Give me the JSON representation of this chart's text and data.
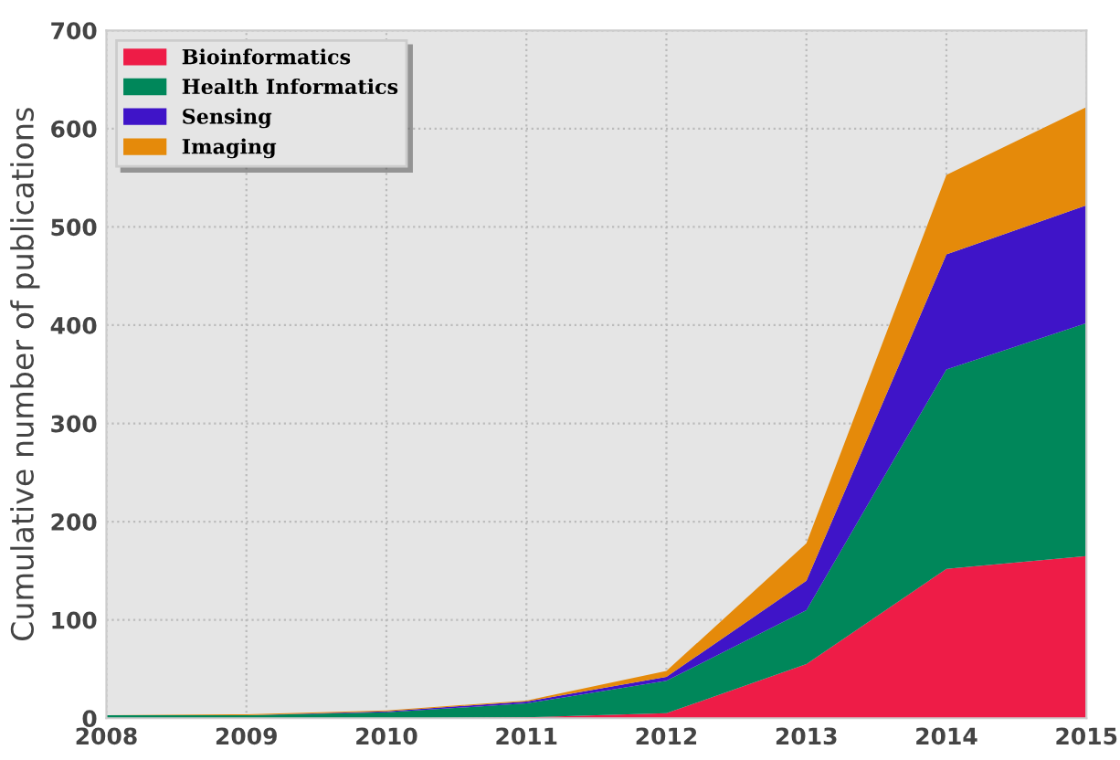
{
  "chart_data": {
    "type": "area",
    "stacked": true,
    "ylabel": "Cumulative number of publications",
    "x": [
      2008,
      2009,
      2010,
      2011,
      2012,
      2013,
      2014,
      2015
    ],
    "series": [
      {
        "name": "Bioinformatics",
        "color": "#ee1c47",
        "values": [
          0,
          0,
          0,
          1,
          5,
          55,
          152,
          165
        ]
      },
      {
        "name": "Health Informatics",
        "color": "#00875a",
        "values": [
          3,
          3,
          6,
          14,
          33,
          55,
          203,
          237
        ]
      },
      {
        "name": "Sensing",
        "color": "#3f14c8",
        "values": [
          0,
          0,
          1,
          2,
          4,
          30,
          117,
          120
        ]
      },
      {
        "name": "Imaging",
        "color": "#e58a0a",
        "values": [
          0,
          1,
          1,
          1,
          6,
          38,
          81,
          100
        ]
      }
    ],
    "xlim": [
      2008,
      2015
    ],
    "xticks": [
      2008,
      2009,
      2010,
      2011,
      2012,
      2013,
      2014,
      2015
    ],
    "ylim": [
      0,
      700
    ],
    "yticks": [
      0,
      100,
      200,
      300,
      400,
      500,
      600,
      700
    ],
    "grid": true,
    "legend": "top left"
  }
}
